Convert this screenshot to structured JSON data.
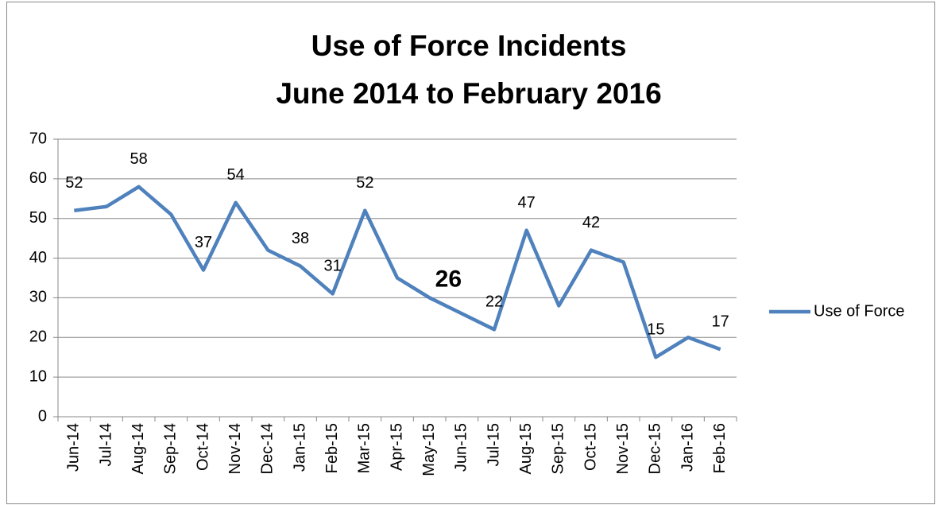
{
  "chart_data": {
    "type": "line",
    "title": "Use of Force Incidents",
    "subtitle": "June 2014 to February 2016",
    "categories": [
      "Jun-14",
      "Jul-14",
      "Aug-14",
      "Sep-14",
      "Oct-14",
      "Nov-14",
      "Dec-14",
      "Jan-15",
      "Feb-15",
      "Mar-15",
      "Apr-15",
      "May-15",
      "Jun-15",
      "Jul-15",
      "Aug-15",
      "Sep-15",
      "Oct-15",
      "Nov-15",
      "Dec-15",
      "Jan-16",
      "Feb-16"
    ],
    "series": [
      {
        "name": "Use of Force",
        "color": "#4f81bd",
        "values": [
          52,
          53,
          58,
          51,
          37,
          54,
          42,
          38,
          31,
          52,
          35,
          30,
          26,
          22,
          47,
          28,
          42,
          39,
          15,
          20,
          17
        ]
      }
    ],
    "show_labels": [
      true,
      false,
      true,
      false,
      true,
      true,
      false,
      true,
      true,
      true,
      false,
      false,
      true,
      true,
      true,
      false,
      true,
      false,
      true,
      false,
      true
    ],
    "emphasized_label": 12,
    "ylim": [
      0,
      70
    ],
    "yticks": [
      0,
      10,
      20,
      30,
      40,
      50,
      60,
      70
    ],
    "grid": true,
    "legend": "right"
  }
}
